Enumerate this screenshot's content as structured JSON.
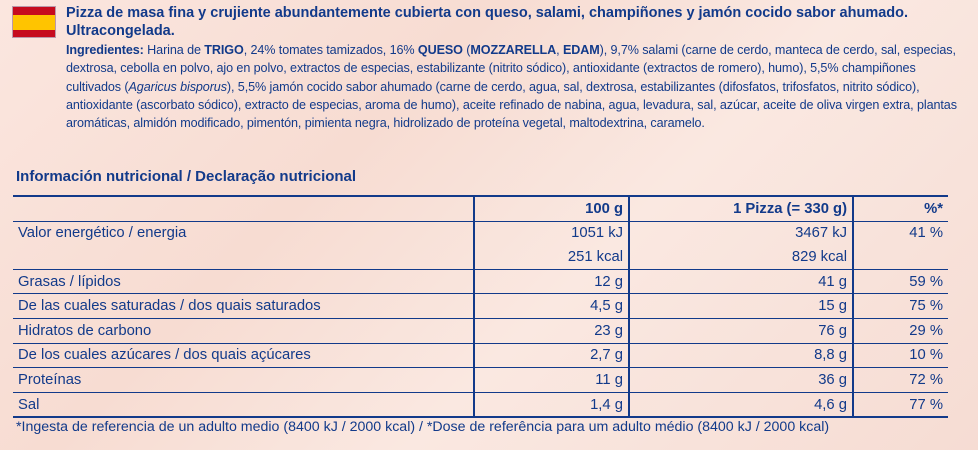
{
  "product": {
    "description": "Pizza de masa fina y crujiente abundantemente cubierta con queso, salami, champiñones y jamón cocido sabor ahumado. Ultracongelada."
  },
  "ingredients": {
    "label": "Ingredientes:",
    "t1": " Harina de ",
    "b1": "TRIGO",
    "t2": ", 24% tomates tamizados, 16% ",
    "b2": "QUESO",
    "t3": " (",
    "b3": "MOZZARELLA",
    "t4": ", ",
    "b4": "EDAM",
    "t5": "), 9,7% salami (carne de cerdo, manteca de cerdo, sal, especias, dextrosa, cebolla en polvo, ajo en polvo, extractos de especias, estabilizante (nitrito sódico), antioxidante (extractos de romero), humo), 5,5% champiñones cultivados (",
    "i1": "Agaricus bisporus",
    "t6": "), 5,5% jamón cocido sabor ahumado (carne de cerdo, agua, sal, dextrosa, estabilizantes (difosfatos, trifosfatos, nitrito sódico), antioxidante (ascorbato sódico), extracto de especias, aroma de humo), aceite refinado de nabina, agua, levadura, sal, azúcar, aceite de oliva virgen extra, plantas aromáticas, almidón modificado, pimentón, pimienta negra, hidrolizado de proteína vegetal, maltodextrina, caramelo."
  },
  "nutrition": {
    "title": "Información nutricional / Declaração nutricional",
    "headers": {
      "per100": "100 g",
      "perPizza": "1 Pizza (= 330 g)",
      "pct": "%*"
    },
    "rows": [
      {
        "label": "Valor energético / energia",
        "per100": "1051 kJ",
        "perPizza": "3467 kJ",
        "pct": "41 %"
      },
      {
        "label": "",
        "per100": "251 kcal",
        "perPizza": "829 kcal",
        "pct": ""
      },
      {
        "label": "Grasas / lípidos",
        "per100": "12 g",
        "perPizza": "41 g",
        "pct": "59 %"
      },
      {
        "label": "De las cuales saturadas / dos quais saturados",
        "per100": "4,5 g",
        "perPizza": "15 g",
        "pct": "75 %"
      },
      {
        "label": "Hidratos de carbono",
        "per100": "23 g",
        "perPizza": "76 g",
        "pct": "29 %"
      },
      {
        "label": "De los cuales azúcares / dos quais açúcares",
        "per100": "2,7 g",
        "perPizza": "8,8 g",
        "pct": "10 %"
      },
      {
        "label": "Proteínas",
        "per100": "11 g",
        "perPizza": "36 g",
        "pct": "72 %"
      },
      {
        "label": "Sal",
        "per100": "1,4 g",
        "perPizza": "4,6 g",
        "pct": "77 %"
      }
    ],
    "footnote": "*Ingesta de referencia de un adulto medio (8400 kJ / 2000 kcal) / *Dose de referência para um adulto médio (8400 kJ / 2000 kcal)"
  },
  "colors": {
    "text": "#123a8a",
    "flag_red": "#c60b1e",
    "flag_yellow": "#ffc400"
  }
}
